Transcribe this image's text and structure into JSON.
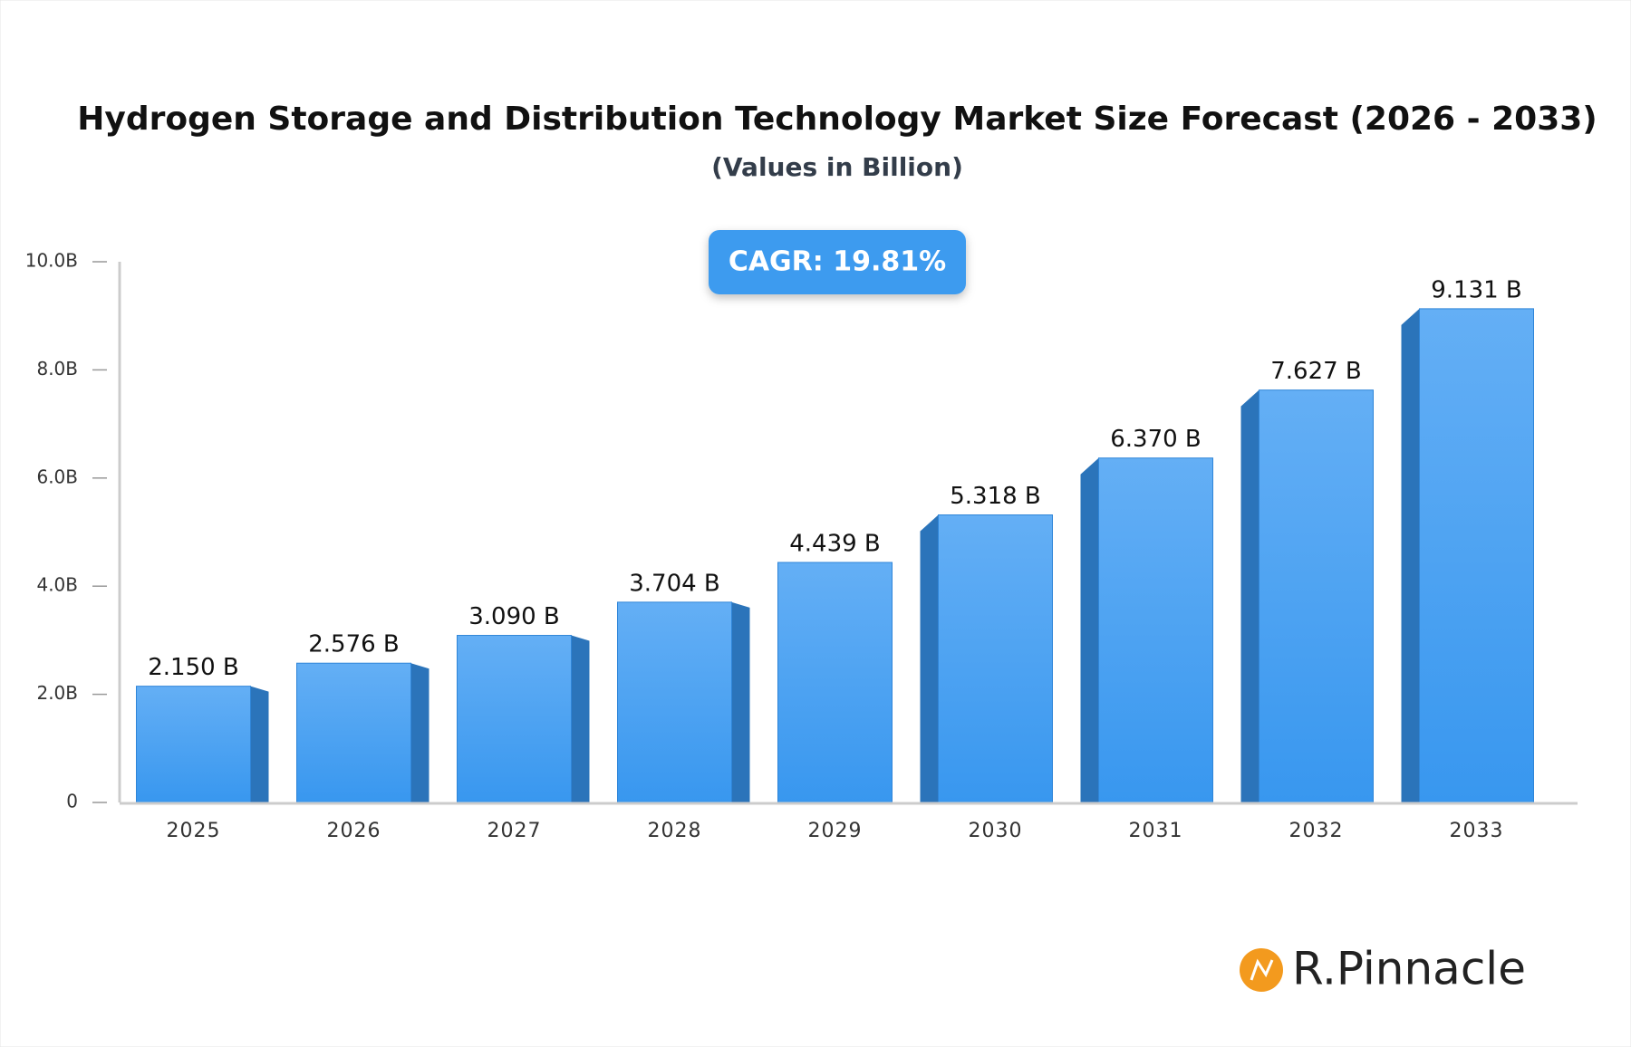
{
  "chart_data": {
    "type": "bar",
    "title": "Hydrogen Storage and Distribution Technology Market Size Forecast (2026 - 2033)",
    "subtitle": "(Values in Billion)",
    "annotation": "CAGR: 19.81%",
    "categories": [
      "2025",
      "2026",
      "2027",
      "2028",
      "2029",
      "2030",
      "2031",
      "2032",
      "2033"
    ],
    "values": [
      2.15,
      2.576,
      3.09,
      3.704,
      4.439,
      5.318,
      6.37,
      7.627,
      9.131
    ],
    "value_labels": [
      "2.150 B",
      "2.576 B",
      "3.090 B",
      "3.704 B",
      "4.439 B",
      "5.318 B",
      "6.370 B",
      "7.627 B",
      "9.131 B"
    ],
    "color": "#4da3f2",
    "ylim": [
      0,
      10
    ],
    "yticks": [
      0,
      {
        "value": 2,
        "label": "2.0B"
      },
      {
        "value": 4,
        "label": "4.0B"
      },
      {
        "value": 6,
        "label": "6.0B"
      },
      {
        "value": 8,
        "label": "8.0B"
      },
      {
        "value": 10,
        "label": "10.0B"
      }
    ],
    "grid": false
  },
  "brand": "R.Pinnacle"
}
